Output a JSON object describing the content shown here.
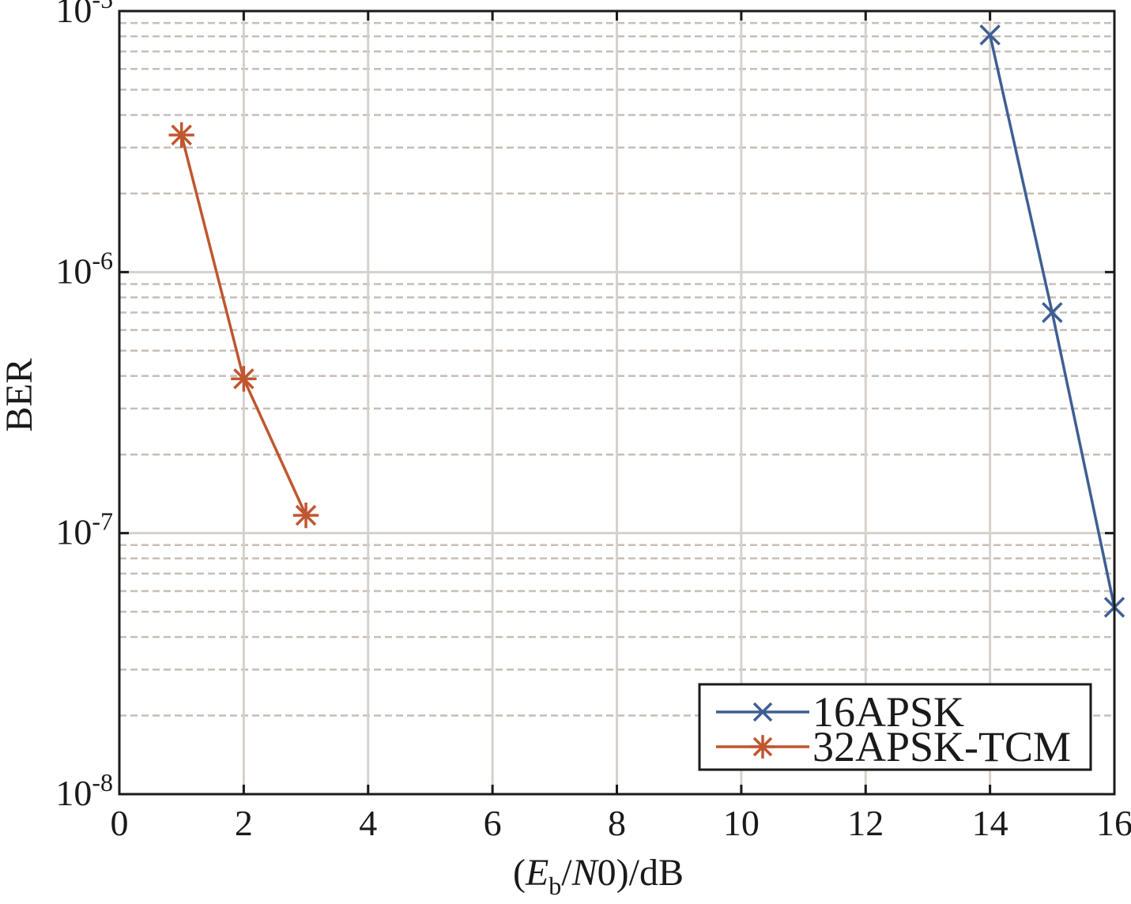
{
  "chart_data": {
    "type": "line",
    "xlabel": {
      "open": "(",
      "E": "E",
      "sub": "b",
      "rest_italic": "N",
      "rest": "0)/dB"
    },
    "ylabel": "BER",
    "xlim": [
      0,
      16
    ],
    "ylim": [
      1e-08,
      1e-05
    ],
    "yscale": "log",
    "grid": true,
    "minor_grid": true,
    "legend_position": "bottom-right",
    "x_ticks": [
      "0",
      "2",
      "4",
      "6",
      "8",
      "10",
      "12",
      "14",
      "16"
    ],
    "y_ticks": [
      {
        "base": "10",
        "exp": "-8",
        "value": 1e-08
      },
      {
        "base": "10",
        "exp": "-7",
        "value": 1e-07
      },
      {
        "base": "10",
        "exp": "-6",
        "value": 1e-06
      },
      {
        "base": "10",
        "exp": "-5",
        "value": 1e-05
      }
    ],
    "series": [
      {
        "name": "16APSK",
        "color": "#3f5f93",
        "marker": "x",
        "x": [
          14,
          15,
          16
        ],
        "y": [
          8.1e-06,
          7e-07,
          5.2e-08
        ]
      },
      {
        "name": "32APSK-TCM",
        "color": "#c0562f",
        "marker": "asterisk",
        "x": [
          1,
          2,
          3
        ],
        "y": [
          3.35e-06,
          3.9e-07,
          1.17e-07
        ]
      }
    ]
  }
}
